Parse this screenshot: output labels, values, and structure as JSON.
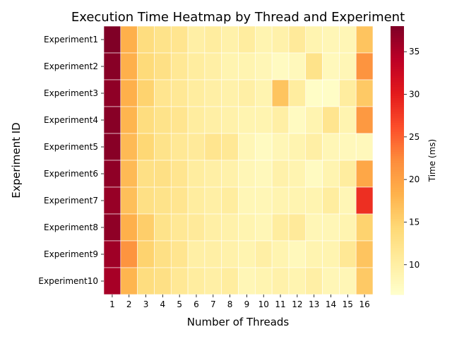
{
  "chart_data": {
    "type": "heatmap",
    "title": "Execution Time Heatmap by Thread and Experiment",
    "xlabel": "Number of Threads",
    "ylabel": "Experiment ID",
    "colorbar_label": "Time (ms)",
    "colormap": "YlOrRd",
    "vmin": 6.5,
    "vmax": 38,
    "colorbar_ticks": [
      10,
      15,
      20,
      25,
      30,
      35
    ],
    "x": [
      "1",
      "2",
      "3",
      "4",
      "5",
      "6",
      "7",
      "8",
      "9",
      "10",
      "11",
      "12",
      "13",
      "14",
      "15",
      "16"
    ],
    "y": [
      "Experiment1",
      "Experiment2",
      "Experiment3",
      "Experiment4",
      "Experiment5",
      "Experiment6",
      "Experiment7",
      "Experiment8",
      "Experiment9",
      "Experiment10"
    ],
    "values": [
      [
        38.0,
        18.5,
        13.5,
        12.5,
        12.0,
        10.0,
        10.5,
        9.5,
        10.5,
        9.0,
        9.5,
        11.0,
        9.0,
        8.5,
        8.5,
        16.5
      ],
      [
        37.5,
        18.5,
        14.0,
        13.0,
        11.5,
        10.5,
        10.0,
        9.0,
        9.0,
        8.5,
        7.5,
        8.0,
        12.5,
        8.0,
        8.5,
        21.5
      ],
      [
        37.0,
        18.5,
        15.0,
        12.0,
        11.5,
        10.5,
        10.0,
        9.5,
        10.0,
        9.0,
        16.5,
        10.5,
        7.0,
        7.0,
        10.5,
        16.0
      ],
      [
        37.5,
        18.0,
        13.5,
        12.5,
        12.0,
        10.5,
        10.0,
        9.5,
        9.0,
        9.0,
        10.0,
        7.5,
        9.0,
        12.0,
        9.0,
        21.0
      ],
      [
        37.5,
        17.5,
        14.5,
        12.5,
        11.5,
        11.0,
        12.0,
        11.5,
        8.5,
        7.5,
        8.5,
        9.0,
        10.0,
        8.5,
        8.0,
        8.0
      ],
      [
        37.0,
        17.5,
        13.0,
        13.0,
        12.0,
        10.5,
        10.0,
        9.5,
        8.5,
        8.0,
        9.5,
        9.0,
        7.5,
        9.0,
        10.5,
        19.5
      ],
      [
        36.5,
        17.0,
        13.0,
        12.5,
        12.0,
        10.5,
        10.0,
        10.5,
        8.5,
        8.5,
        9.0,
        9.0,
        9.0,
        10.5,
        8.5,
        28.5
      ],
      [
        37.0,
        18.5,
        15.5,
        12.5,
        11.5,
        11.0,
        10.0,
        9.5,
        9.0,
        8.5,
        10.5,
        11.0,
        8.5,
        8.5,
        9.0,
        15.0
      ],
      [
        36.0,
        21.5,
        15.0,
        13.0,
        12.0,
        10.0,
        10.0,
        9.5,
        9.0,
        10.0,
        9.0,
        8.0,
        9.0,
        9.0,
        11.5,
        16.5
      ],
      [
        35.5,
        18.0,
        13.5,
        13.0,
        11.5,
        10.5,
        10.0,
        10.5,
        8.5,
        9.0,
        9.5,
        9.0,
        10.0,
        8.5,
        8.5,
        16.0
      ]
    ]
  }
}
